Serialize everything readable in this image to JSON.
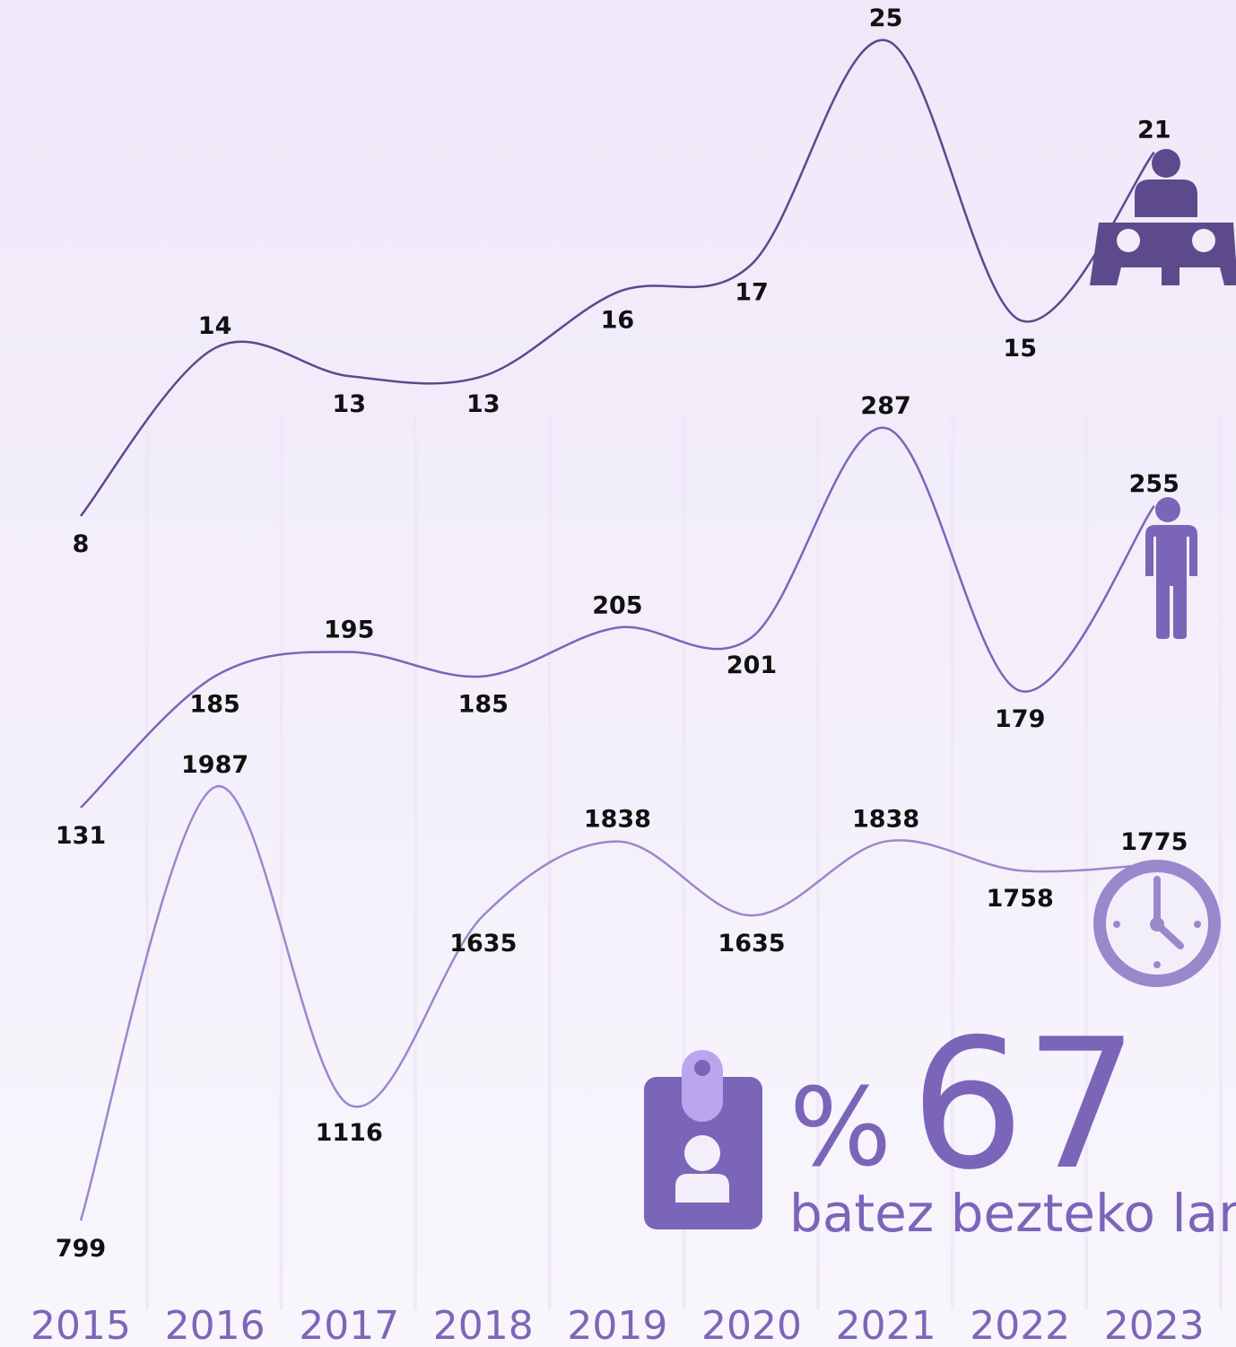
{
  "chart_data": {
    "type": "line",
    "categories": [
      "2015",
      "2016",
      "2017",
      "2018",
      "2019",
      "2020",
      "2021",
      "2022",
      "2023"
    ],
    "series": [
      {
        "color": "#5b4a8a",
        "values": [
          8,
          14,
          13,
          13,
          16,
          17,
          25,
          15,
          21
        ]
      },
      {
        "color": "#7b65b8",
        "values": [
          131,
          185,
          195,
          185,
          205,
          201,
          287,
          179,
          255
        ]
      },
      {
        "color": "#9a88cc",
        "values": [
          799,
          1987,
          1116,
          1635,
          1838,
          1635,
          1838,
          1758,
          1775
        ]
      }
    ],
    "highlight": {
      "symbol": "%",
      "number": "67",
      "caption": "batez bezteko lan"
    }
  }
}
